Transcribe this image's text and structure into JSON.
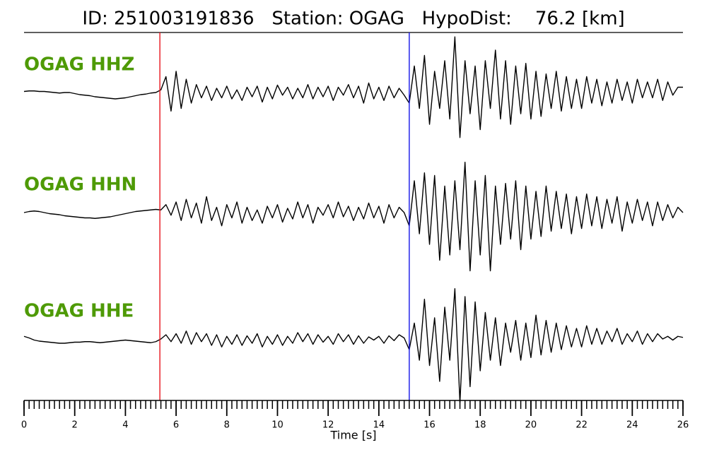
{
  "chart_data": {
    "type": "seismogram",
    "title": "ID: 251003191836   Station: OGAG   HypoDist:    76.2 [km]",
    "xlabel": "Time [s]",
    "xlim": [
      0,
      26
    ],
    "xticks": [
      0,
      2,
      4,
      6,
      8,
      10,
      12,
      14,
      16,
      18,
      20,
      22,
      24,
      26
    ],
    "xticks_minor": [
      0,
      0.2,
      0.4,
      0.6,
      0.8,
      1,
      1.2,
      1.4,
      1.6,
      1.8,
      2,
      2.2,
      2.4,
      2.6,
      2.8,
      3,
      3.2,
      3.4,
      3.6,
      3.8,
      4,
      4.2,
      4.4,
      4.6,
      4.8,
      5,
      5.2,
      5.4,
      5.6,
      5.8,
      6,
      6.2,
      6.4,
      6.6,
      6.8,
      7,
      7.2,
      7.4,
      7.6,
      7.8,
      8,
      8.2,
      8.4,
      8.6,
      8.8,
      9,
      9.2,
      9.4,
      9.6,
      9.8,
      10,
      10.2,
      10.4,
      10.6,
      10.8,
      11,
      11.2,
      11.4,
      11.6,
      11.8,
      12,
      12.2,
      12.4,
      12.6,
      12.8,
      13,
      13.2,
      13.4,
      13.6,
      13.8,
      14,
      14.2,
      14.4,
      14.6,
      14.8,
      15,
      15.2,
      15.4,
      15.6,
      15.8,
      16,
      16.2,
      16.4,
      16.6,
      16.8,
      17,
      17.2,
      17.4,
      17.6,
      17.8,
      18,
      18.2,
      18.4,
      18.6,
      18.8,
      19,
      19.2,
      19.4,
      19.6,
      19.8,
      20,
      20.2,
      20.4,
      20.6,
      20.8,
      21,
      21.2,
      21.4,
      21.6,
      21.8,
      22,
      22.2,
      22.4,
      22.6,
      22.8,
      23,
      23.2,
      23.4,
      23.6,
      23.8,
      24,
      24.2,
      24.4,
      24.6,
      24.8,
      25,
      25.2,
      25.4,
      25.6,
      25.8,
      26
    ],
    "x": [
      0,
      0.2,
      0.4,
      0.6,
      0.8,
      1,
      1.2,
      1.4,
      1.6,
      1.8,
      2,
      2.2,
      2.4,
      2.6,
      2.8,
      3,
      3.2,
      3.4,
      3.6,
      3.8,
      4,
      4.2,
      4.4,
      4.6,
      4.8,
      5,
      5.2,
      5.4,
      5.6,
      5.8,
      6,
      6.2,
      6.4,
      6.6,
      6.8,
      7,
      7.2,
      7.4,
      7.6,
      7.8,
      8,
      8.2,
      8.4,
      8.6,
      8.8,
      9,
      9.2,
      9.4,
      9.6,
      9.8,
      10,
      10.2,
      10.4,
      10.6,
      10.8,
      11,
      11.2,
      11.4,
      11.6,
      11.8,
      12,
      12.2,
      12.4,
      12.6,
      12.8,
      13,
      13.2,
      13.4,
      13.6,
      13.8,
      14,
      14.2,
      14.4,
      14.6,
      14.8,
      15,
      15.2,
      15.4,
      15.6,
      15.8,
      16,
      16.2,
      16.4,
      16.6,
      16.8,
      17,
      17.2,
      17.4,
      17.6,
      17.8,
      18,
      18.2,
      18.4,
      18.6,
      18.8,
      19,
      19.2,
      19.4,
      19.6,
      19.8,
      20,
      20.2,
      20.4,
      20.6,
      20.8,
      21,
      21.2,
      21.4,
      21.6,
      21.8,
      22,
      22.2,
      22.4,
      22.6,
      22.8,
      23,
      23.2,
      23.4,
      23.6,
      23.8,
      24,
      24.2,
      24.4,
      24.6,
      24.8,
      25,
      25.2,
      25.4,
      25.6,
      25.8,
      26
    ],
    "ylim": [
      -1.2,
      1.2
    ],
    "label_color": "#4e9a06",
    "markers": [
      {
        "x": 5.36,
        "color": "#e8141c"
      },
      {
        "x": 15.2,
        "color": "#1414e8"
      }
    ],
    "series": [
      {
        "name": "OGAG HHZ",
        "color": "#000000",
        "values": [
          0.02,
          0.03,
          0.03,
          0.02,
          0.02,
          0.01,
          0,
          -0.01,
          0,
          0,
          -0.02,
          -0.04,
          -0.05,
          -0.06,
          -0.08,
          -0.09,
          -0.1,
          -0.11,
          -0.12,
          -0.11,
          -0.1,
          -0.08,
          -0.06,
          -0.04,
          -0.03,
          -0.01,
          0,
          0.05,
          0.3,
          -0.35,
          0.4,
          -0.3,
          0.25,
          -0.2,
          0.15,
          -0.1,
          0.12,
          -0.15,
          0.08,
          -0.1,
          0.12,
          -0.12,
          0.05,
          -0.15,
          0.1,
          -0.08,
          0.12,
          -0.18,
          0.1,
          -0.12,
          0.14,
          -0.05,
          0.1,
          -0.12,
          0.08,
          -0.1,
          0.15,
          -0.12,
          0.1,
          -0.08,
          0.12,
          -0.15,
          0.1,
          -0.05,
          0.15,
          -0.1,
          0.12,
          -0.2,
          0.18,
          -0.12,
          0.1,
          -0.15,
          0.12,
          -0.1,
          0.08,
          -0.05,
          -0.2,
          0.5,
          -0.3,
          0.7,
          -0.6,
          0.4,
          -0.3,
          0.6,
          -0.5,
          1.05,
          -0.85,
          0.6,
          -0.4,
          0.5,
          -0.7,
          0.6,
          -0.3,
          0.8,
          -0.5,
          0.6,
          -0.6,
          0.5,
          -0.4,
          0.55,
          -0.5,
          0.4,
          -0.45,
          0.35,
          -0.3,
          0.4,
          -0.35,
          0.3,
          -0.3,
          0.25,
          -0.3,
          0.3,
          -0.2,
          0.25,
          -0.25,
          0.2,
          -0.2,
          0.25,
          -0.15,
          0.2,
          -0.2,
          0.25,
          -0.1,
          0.2,
          -0.1,
          0.25,
          -0.15,
          0.2,
          -0.05,
          0.1,
          0.1
        ]
      },
      {
        "name": "OGAG HHN",
        "color": "#000000",
        "values": [
          0,
          0.02,
          0.03,
          0.02,
          0,
          -0.02,
          -0.03,
          -0.04,
          -0.06,
          -0.07,
          -0.08,
          -0.09,
          -0.1,
          -0.1,
          -0.11,
          -0.1,
          -0.09,
          -0.08,
          -0.06,
          -0.04,
          -0.02,
          0,
          0.02,
          0.03,
          0.04,
          0.05,
          0.06,
          0.05,
          0.15,
          -0.05,
          0.2,
          -0.15,
          0.25,
          -0.1,
          0.18,
          -0.2,
          0.3,
          -0.15,
          0.1,
          -0.25,
          0.15,
          -0.1,
          0.2,
          -0.2,
          0.1,
          -0.15,
          0.05,
          -0.2,
          0.12,
          -0.1,
          0.15,
          -0.18,
          0.08,
          -0.12,
          0.2,
          -0.1,
          0.15,
          -0.2,
          0.1,
          -0.05,
          0.15,
          -0.1,
          0.2,
          -0.08,
          0.12,
          -0.15,
          0.1,
          -0.12,
          0.18,
          -0.1,
          0.12,
          -0.2,
          0.15,
          -0.1,
          0.1,
          0,
          -0.25,
          0.6,
          -0.4,
          0.75,
          -0.6,
          0.7,
          -0.9,
          0.5,
          -0.8,
          0.6,
          -0.7,
          0.95,
          -1.1,
          0.6,
          -0.8,
          0.7,
          -1.1,
          0.5,
          -0.6,
          0.55,
          -0.5,
          0.6,
          -0.7,
          0.5,
          -0.5,
          0.4,
          -0.45,
          0.5,
          -0.35,
          0.4,
          -0.3,
          0.35,
          -0.4,
          0.3,
          -0.3,
          0.35,
          -0.25,
          0.3,
          -0.3,
          0.25,
          -0.2,
          0.3,
          -0.35,
          0.2,
          -0.2,
          0.25,
          -0.15,
          0.2,
          -0.25,
          0.2,
          -0.15,
          0.15,
          -0.1,
          0.1,
          0
        ]
      },
      {
        "name": "OGAG HHE",
        "color": "#000000",
        "values": [
          0.05,
          0.02,
          -0.02,
          -0.04,
          -0.05,
          -0.06,
          -0.07,
          -0.08,
          -0.08,
          -0.07,
          -0.06,
          -0.06,
          -0.05,
          -0.05,
          -0.06,
          -0.07,
          -0.06,
          -0.05,
          -0.04,
          -0.03,
          -0.02,
          -0.03,
          -0.04,
          -0.05,
          -0.06,
          -0.07,
          -0.05,
          0,
          0.08,
          -0.05,
          0.1,
          -0.08,
          0.15,
          -0.1,
          0.12,
          -0.05,
          0.1,
          -0.12,
          0.08,
          -0.15,
          0.05,
          -0.1,
          0.08,
          -0.12,
          0.06,
          -0.08,
          0.1,
          -0.15,
          0.05,
          -0.1,
          0.08,
          -0.12,
          0.05,
          -0.08,
          0.12,
          -0.05,
          0.1,
          -0.1,
          0.08,
          -0.06,
          0.05,
          -0.1,
          0.1,
          -0.05,
          0.08,
          -0.1,
          0.06,
          -0.08,
          0.04,
          -0.02,
          0.05,
          -0.08,
          0.06,
          -0.03,
          0.08,
          0.02,
          -0.2,
          0.3,
          -0.4,
          0.75,
          -0.5,
          0.4,
          -0.8,
          0.6,
          -0.4,
          0.95,
          -1.2,
          0.8,
          -0.9,
          0.7,
          -0.6,
          0.5,
          -0.4,
          0.4,
          -0.5,
          0.3,
          -0.25,
          0.35,
          -0.4,
          0.3,
          -0.35,
          0.45,
          -0.3,
          0.35,
          -0.25,
          0.3,
          -0.2,
          0.25,
          -0.15,
          0.2,
          -0.15,
          0.25,
          -0.1,
          0.2,
          -0.1,
          0.15,
          -0.05,
          0.2,
          -0.1,
          0.1,
          -0.05,
          0.15,
          -0.1,
          0.1,
          -0.05,
          0.1,
          0,
          0.05,
          -0.02,
          0.05,
          0.03
        ]
      }
    ]
  }
}
